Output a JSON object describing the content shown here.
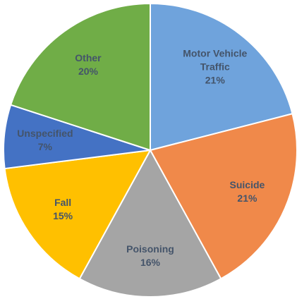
{
  "chart_data": {
    "type": "pie",
    "categories": [
      "Motor Vehicle Traffic",
      "Suicide",
      "Poisoning",
      "Fall",
      "Unspecified",
      "Other"
    ],
    "values": [
      21,
      21,
      16,
      15,
      7,
      20
    ],
    "value_labels": [
      "21%",
      "21%",
      "16%",
      "15%",
      "7%",
      "20%"
    ],
    "colors": [
      "#6fa3dc",
      "#f0894a",
      "#a5a5a5",
      "#ffc000",
      "#4472c4",
      "#70ad47"
    ]
  }
}
